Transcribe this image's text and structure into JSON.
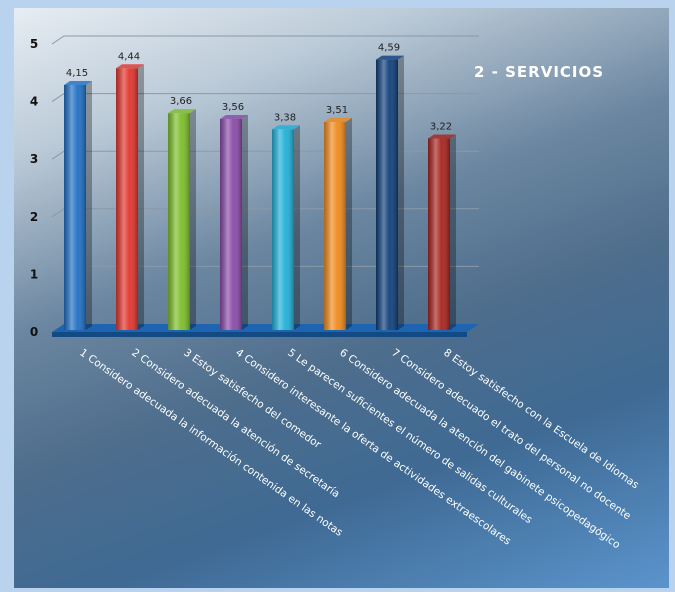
{
  "chart_data": {
    "type": "bar",
    "title": "2 - SERVICIOS",
    "ylim": [
      0,
      5
    ],
    "yticks": [
      "0",
      "1",
      "2",
      "3",
      "4",
      "5"
    ],
    "grid": true,
    "categories": [
      "1 Considero adecuada la información contenida en las notas",
      "2 Considero adecuada la atención de secretaría",
      "3 Estoy satisfecho del comedor",
      "4 Considero interesante la oferta de actividades extraescolares",
      "5 Le parecen suficientes el número de salidas culturales",
      "6 Considero adecuada la atención del gabinete psicopedagógico",
      "7 Considero adecuado el trato del personal no docente",
      "8 Estoy satisfecho con la Escuela de Idiomas"
    ],
    "values": [
      4.15,
      4.44,
      3.66,
      3.56,
      3.38,
      3.51,
      4.59,
      3.22
    ],
    "value_labels": [
      "4,15",
      "4,44",
      "3,66",
      "3,56",
      "3,38",
      "3,51",
      "4,59",
      "3,22"
    ],
    "colors": [
      "#1f6fc4",
      "#e0342c",
      "#7dbd2a",
      "#8a4aa8",
      "#1fb0d8",
      "#f08a1c",
      "#0f3f7a",
      "#a8231e"
    ]
  }
}
